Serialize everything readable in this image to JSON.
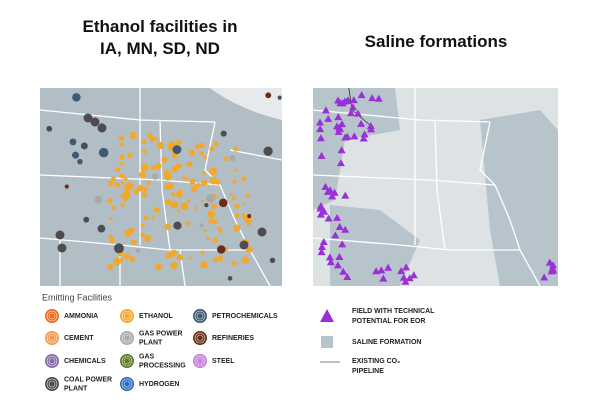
{
  "left_title": [
    "Ethanol facilities in",
    "IA, MN, SD, ND"
  ],
  "right_title": "Saline formations",
  "legend_left": {
    "title": "Emitting Facilities",
    "items": [
      {
        "label": [
          "AMMONIA"
        ],
        "color": "#f26a1b"
      },
      {
        "label": [
          "CEMENT"
        ],
        "color": "#f49a4a"
      },
      {
        "label": [
          "CHEMICALS"
        ],
        "color": "#8a68a6"
      },
      {
        "label": [
          "COAL POWER",
          "PLANT"
        ],
        "color": "#4d4d4f"
      },
      {
        "label": [
          "ETHANOL"
        ],
        "color": "#f2a82c"
      },
      {
        "label": [
          "GAS POWER",
          "PLANT"
        ],
        "color": "#a9a9a9"
      },
      {
        "label": [
          "GAS",
          "PROCESSING"
        ],
        "color": "#5b7a26"
      },
      {
        "label": [
          "HYDROGEN"
        ],
        "color": "#2c6db3"
      },
      {
        "label": [
          "PETROCHEMICALS"
        ],
        "color": "#3f5873"
      },
      {
        "label": [
          "REFINERIES"
        ],
        "color": "#6a2e17"
      },
      {
        "label": [
          "STEEL"
        ],
        "color": "#c47ed6"
      }
    ]
  },
  "legend_right": {
    "items": [
      {
        "label": [
          "FIELD WITH TECHNICAL",
          "POTENTIAL FOR EOR"
        ],
        "color": "#9b2fd8"
      },
      {
        "label": [
          "SALINE FORMATION"
        ],
        "color": "#b8c4cb"
      },
      {
        "label": [
          "EXISTING CO₂",
          "PIPELINE"
        ],
        "color": "#555555"
      }
    ]
  }
}
